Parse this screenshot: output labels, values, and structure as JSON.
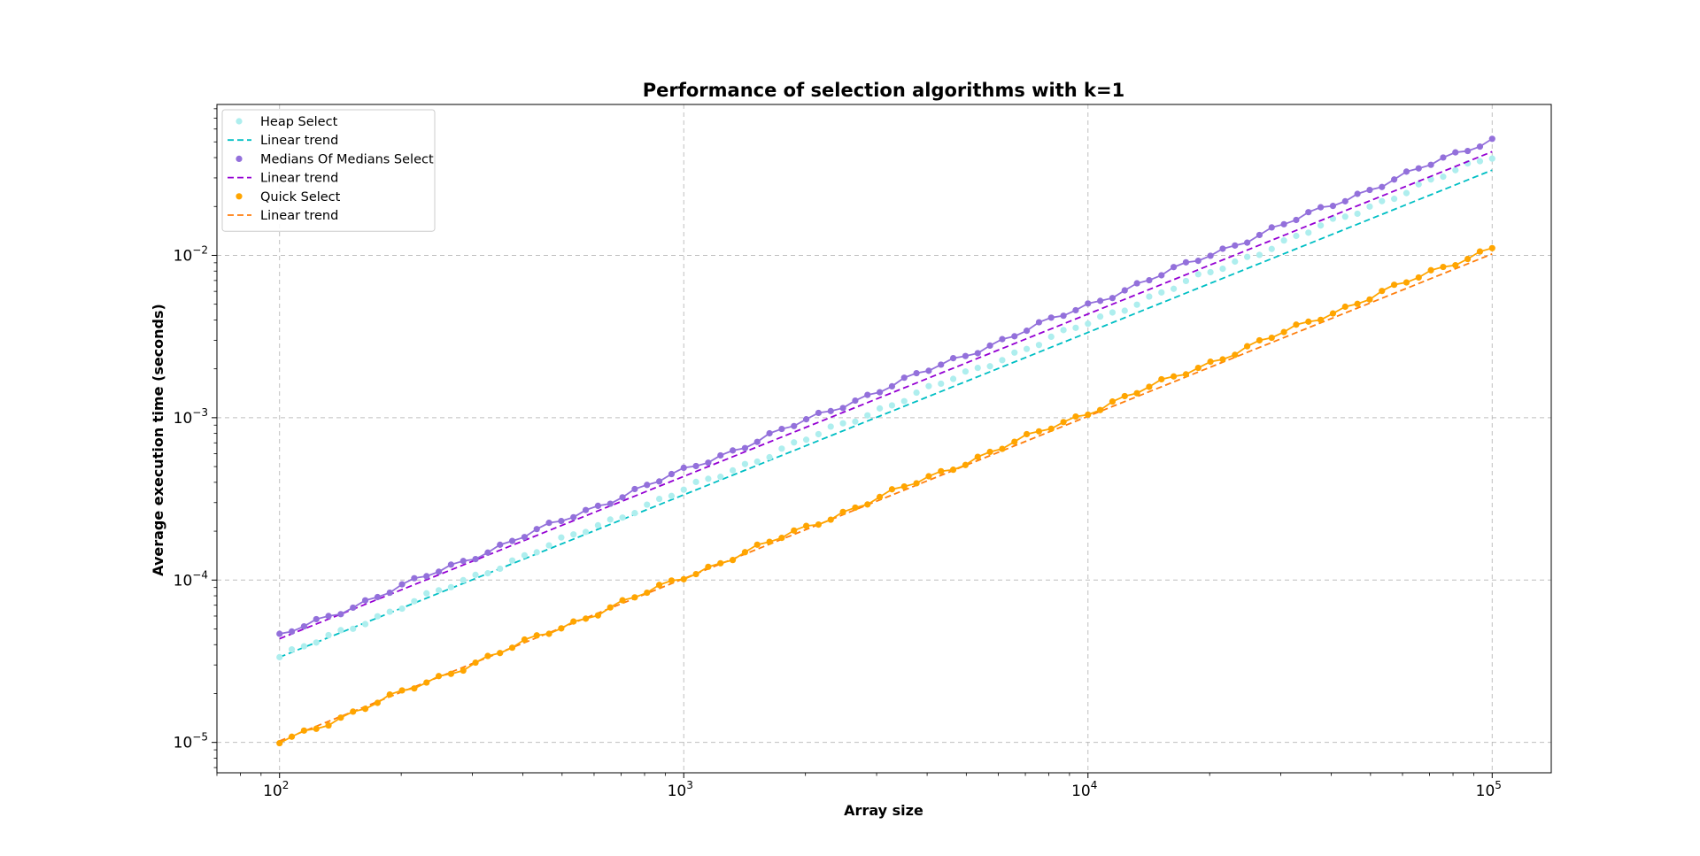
{
  "chart_data": {
    "type": "scatter",
    "title": "Performance of selection algorithms with k=1",
    "xlabel": "Array size",
    "ylabel": "Average execution time (seconds)",
    "xscale": "log",
    "yscale": "log",
    "xlim": [
      70,
      140000
    ],
    "ylim": [
      6.5e-06,
      0.085
    ],
    "grid": true,
    "legend_position": "top-left",
    "x_ticks": [
      {
        "base": "10",
        "exp": "2",
        "value": 100
      },
      {
        "base": "10",
        "exp": "3",
        "value": 1000
      },
      {
        "base": "10",
        "exp": "4",
        "value": 10000
      },
      {
        "base": "10",
        "exp": "5",
        "value": 100000
      }
    ],
    "y_ticks": [
      {
        "base": "10",
        "exp": "−5",
        "value": 1e-05
      },
      {
        "base": "10",
        "exp": "−4",
        "value": 0.0001
      },
      {
        "base": "10",
        "exp": "−3",
        "value": 0.001
      },
      {
        "base": "10",
        "exp": "−2",
        "value": 0.01
      }
    ],
    "x_range": [
      100,
      100000
    ],
    "n_points": 100,
    "series": [
      {
        "name": "Heap Select",
        "color": "#aeeeee",
        "marker": "point",
        "y_start": 3.35e-05,
        "y_end": 0.041,
        "trend": {
          "name": "Linear trend",
          "color": "#00bfc4",
          "y_start": 3.35e-05,
          "y_end": 0.0335
        }
      },
      {
        "name": "Medians Of Medians Select",
        "color": "#9370db",
        "marker": "point-line",
        "y_start": 4.5e-05,
        "y_end": 0.052,
        "trend": {
          "name": "Linear trend",
          "color": "#9400d3",
          "y_start": 4.35e-05,
          "y_end": 0.0435
        }
      },
      {
        "name": "Quick Select",
        "color": "#ffa500",
        "marker": "point-line",
        "y_start": 1e-05,
        "y_end": 0.0112,
        "trend": {
          "name": "Linear trend",
          "color": "#ff7f0e",
          "y_start": 1.02e-05,
          "y_end": 0.0102
        }
      }
    ]
  }
}
